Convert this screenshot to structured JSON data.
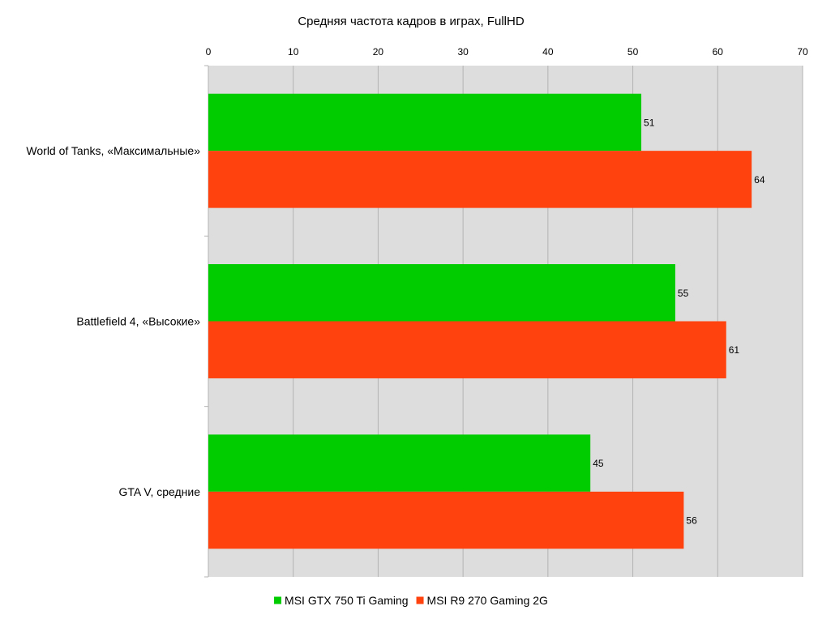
{
  "chart_data": {
    "type": "bar",
    "orientation": "horizontal",
    "title": "Средняя частота кадров в играх, FullHD",
    "categories": [
      "World of Tanks, «Максимальные»",
      "Battlefield 4, «Высокие»",
      "GTA V, средние"
    ],
    "series": [
      {
        "name": "MSI GTX 750 Ti Gaming",
        "color": "#00cc00",
        "values": [
          51,
          55,
          45
        ]
      },
      {
        "name": "MSI R9 270 Gaming 2G",
        "color": "#ff420e",
        "values": [
          64,
          61,
          56
        ]
      }
    ],
    "xlim": [
      0,
      70
    ],
    "x_ticks": [
      0,
      10,
      20,
      30,
      40,
      50,
      60,
      70
    ],
    "x_axis_position": "top",
    "grid": true,
    "plot_background": "#dddddd",
    "gridline_color": "#b3b3b3",
    "legend_position": "bottom",
    "data_labels": true
  }
}
